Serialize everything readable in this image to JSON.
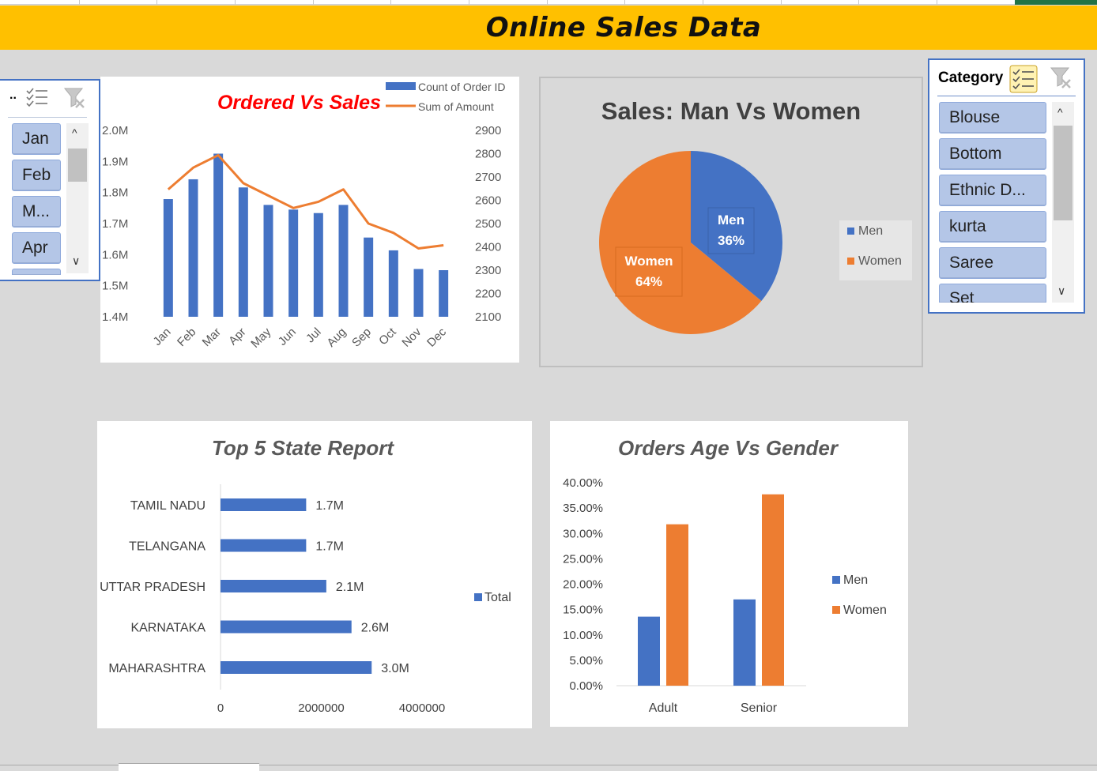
{
  "title": "Online Sales Data",
  "month_slicer": {
    "header": "..",
    "items": [
      "Jan",
      "Feb",
      "M...",
      "Apr"
    ]
  },
  "category_slicer": {
    "header": "Category",
    "items": [
      "Blouse",
      "Bottom",
      "Ethnic D...",
      "kurta",
      "Saree",
      "Set"
    ]
  },
  "colors": {
    "blue": "#4472c4",
    "orange": "#ed7d31",
    "banner": "#ffc000",
    "red_title": "#ff0000"
  },
  "chart_data": [
    {
      "type": "bar",
      "title": "Ordered Vs Sales",
      "categories": [
        "Jan",
        "Feb",
        "Mar",
        "Apr",
        "May",
        "Jun",
        "Jul",
        "Aug",
        "Sep",
        "Oct",
        "Nov",
        "Dec"
      ],
      "series": [
        {
          "name": "Count of Order ID",
          "type": "bar",
          "axis": "right",
          "values": [
            2605,
            2690,
            2800,
            2655,
            2580,
            2560,
            2545,
            2580,
            2440,
            2385,
            2305,
            2300
          ]
        },
        {
          "name": "Sum of Amount",
          "type": "line",
          "axis": "left",
          "values": [
            1.81,
            1.88,
            1.92,
            1.83,
            1.79,
            1.75,
            1.77,
            1.81,
            1.7,
            1.67,
            1.62,
            1.63
          ]
        }
      ],
      "ylim_left": [
        1.4,
        2.0
      ],
      "yticks_left": [
        "1.4M",
        "1.5M",
        "1.6M",
        "1.7M",
        "1.8M",
        "1.9M",
        "2.0M"
      ],
      "ylim_right": [
        2100,
        2900
      ],
      "yticks_right": [
        "2100",
        "2200",
        "2300",
        "2400",
        "2500",
        "2600",
        "2700",
        "2800",
        "2900"
      ],
      "legend": "top-right"
    },
    {
      "type": "pie",
      "title": "Sales:  Man Vs Women",
      "labels": [
        "Men",
        "Women"
      ],
      "values": [
        36,
        64
      ],
      "data_labels": [
        "36%",
        "64%"
      ],
      "legend": "right"
    },
    {
      "type": "bar",
      "orientation": "horizontal",
      "title": "Top 5 State Report",
      "categories": [
        "TAMIL NADU",
        "TELANGANA",
        "UTTAR PRADESH",
        "KARNATAKA",
        "MAHARASHTRA"
      ],
      "series": [
        {
          "name": "Total",
          "values": [
            1700000,
            1700000,
            2100000,
            2600000,
            3000000
          ]
        }
      ],
      "data_labels": [
        "1.7M",
        "1.7M",
        "2.1M",
        "2.6M",
        "3.0M"
      ],
      "xlim": [
        0,
        4000000
      ],
      "xticks": [
        "0",
        "2000000",
        "4000000"
      ],
      "legend": "right"
    },
    {
      "type": "bar",
      "title": "Orders Age Vs Gender",
      "categories": [
        "Adult",
        "Senior"
      ],
      "series": [
        {
          "name": "Men",
          "values": [
            13.6,
            17.0
          ]
        },
        {
          "name": "Women",
          "values": [
            31.8,
            37.7
          ]
        }
      ],
      "ylim": [
        0,
        40
      ],
      "yticks": [
        "0.00%",
        "5.00%",
        "10.00%",
        "15.00%",
        "20.00%",
        "25.00%",
        "30.00%",
        "35.00%",
        "40.00%"
      ],
      "legend": "right"
    }
  ]
}
